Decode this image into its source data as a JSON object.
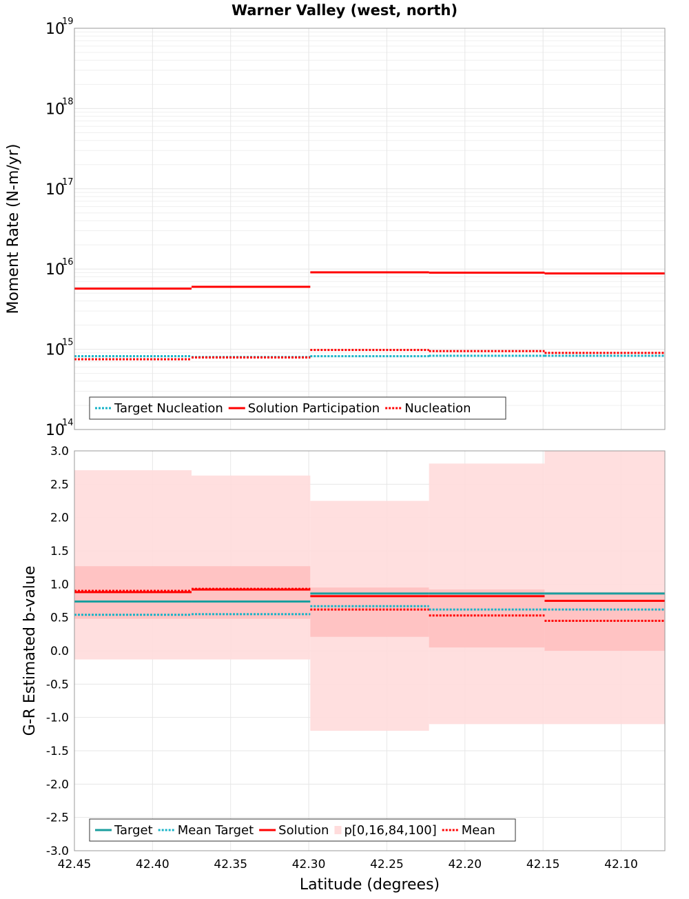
{
  "title": "Warner Valley (west, north)",
  "colors": {
    "target": "#1a9e9e",
    "target_dotted": "#17b3c7",
    "solution": "#ff0000",
    "band_outer": "#ffdcdc",
    "band_inner": "#ffc0c0",
    "grid": "#e6e6e6",
    "frame": "#999999"
  },
  "chart_data": [
    {
      "type": "line",
      "name": "moment-rate-panel",
      "title": "Warner Valley (west, north)",
      "ylabel": "Moment Rate (N-m/yr)",
      "xlabel": "",
      "yscale": "log",
      "ylim": [
        100000000000000.0,
        1e+19
      ],
      "xlim": [
        42.45,
        42.072
      ],
      "x_reversed": true,
      "grid": true,
      "y_ticks": [
        {
          "base": "10",
          "exp": "14"
        },
        {
          "base": "10",
          "exp": "15"
        },
        {
          "base": "10",
          "exp": "16"
        },
        {
          "base": "10",
          "exp": "17"
        },
        {
          "base": "10",
          "exp": "18"
        },
        {
          "base": "10",
          "exp": "19"
        }
      ],
      "bin_edges": [
        42.45,
        42.375,
        42.299,
        42.223,
        42.149,
        42.072
      ],
      "legend_position": "bottom-left",
      "series": [
        {
          "name": "Target Nucleation",
          "style": "dotted",
          "color_key": "target_dotted",
          "values": [
            820000000000000.0,
            800000000000000.0,
            820000000000000.0,
            830000000000000.0,
            830000000000000.0
          ]
        },
        {
          "name": "Solution Participation",
          "style": "solid",
          "color_key": "solution",
          "values": [
            5700000000000000.0,
            6000000000000000.0,
            9100000000000000.0,
            9000000000000000.0,
            8800000000000000.0
          ]
        },
        {
          "name": "Nucleation",
          "style": "dotted",
          "color_key": "solution",
          "values": [
            750000000000000.0,
            790000000000000.0,
            980000000000000.0,
            950000000000000.0,
            900000000000000.0
          ]
        }
      ]
    },
    {
      "type": "line",
      "name": "b-value-panel",
      "title": "",
      "ylabel": "G-R Estimated b-value",
      "xlabel": "Latitude (degrees)",
      "ylim": [
        -3.0,
        3.0
      ],
      "xlim": [
        42.45,
        42.072
      ],
      "x_reversed": true,
      "grid": true,
      "y_ticks": [
        "-3.0",
        "-2.5",
        "-2.0",
        "-1.5",
        "-1.0",
        "-0.5",
        "0.0",
        "0.5",
        "1.0",
        "1.5",
        "2.0",
        "2.5",
        "3.0"
      ],
      "x_ticks": [
        "42.45",
        "42.40",
        "42.35",
        "42.30",
        "42.25",
        "42.20",
        "42.15",
        "42.10"
      ],
      "bin_edges": [
        42.45,
        42.375,
        42.299,
        42.223,
        42.149,
        42.072
      ],
      "legend_position": "bottom-left",
      "bands": {
        "name": "p[0,16,84,100]",
        "p0": [
          -0.13,
          -0.13,
          -1.2,
          -1.1,
          -1.1
        ],
        "p16": [
          0.48,
          0.48,
          0.21,
          0.05,
          0.0
        ],
        "p84": [
          1.27,
          1.27,
          0.95,
          0.92,
          0.88
        ],
        "p100": [
          2.71,
          2.63,
          2.25,
          2.81,
          3.0
        ]
      },
      "series": [
        {
          "name": "Target",
          "style": "solid",
          "color_key": "target",
          "values": [
            0.74,
            0.74,
            0.86,
            0.86,
            0.86
          ]
        },
        {
          "name": "Mean Target",
          "style": "dotted",
          "color_key": "target_dotted",
          "values": [
            0.54,
            0.55,
            0.67,
            0.62,
            0.62
          ]
        },
        {
          "name": "Solution",
          "style": "solid",
          "color_key": "solution",
          "values": [
            0.88,
            0.92,
            0.82,
            0.82,
            0.75
          ]
        },
        {
          "name": "Mean",
          "style": "dotted",
          "color_key": "solution",
          "values": [
            0.9,
            0.93,
            0.62,
            0.53,
            0.45
          ]
        }
      ]
    }
  ]
}
